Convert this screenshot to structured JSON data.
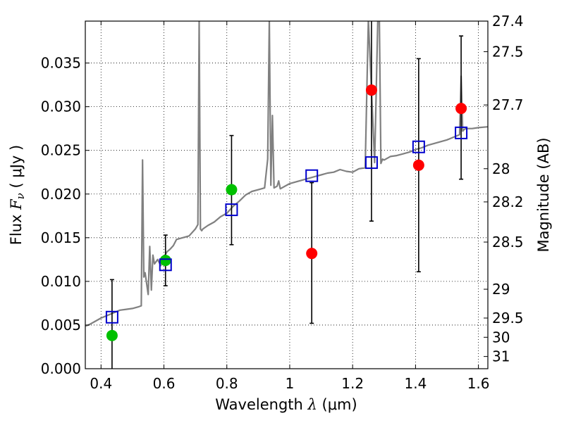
{
  "chart_data": {
    "type": "scatter",
    "xlabel": {
      "prefix": "Wavelength ",
      "symbol": "λ",
      "unit": " (μm)"
    },
    "ylabel": {
      "prefix": "Flux ",
      "symbol": "F",
      "subscript": "ν",
      "unit": " ( μJy )"
    },
    "y2label": "Magnitude (AB)",
    "xlim": [
      0.35,
      1.63
    ],
    "ylim": [
      0.0,
      0.0398
    ],
    "xticks": [
      0.4,
      0.6,
      0.8,
      1.0,
      1.2,
      1.4,
      1.6
    ],
    "xtick_labels": [
      "0.4",
      "0.6",
      "0.8",
      "1",
      "1.2",
      "1.4",
      "1.6"
    ],
    "yticks": [
      0.0,
      0.005,
      0.01,
      0.015,
      0.02,
      0.025,
      0.03,
      0.035
    ],
    "ytick_labels": [
      "0.000",
      "0.005",
      "0.010",
      "0.015",
      "0.020",
      "0.025",
      "0.030",
      "0.035"
    ],
    "y2ticks": [
      {
        "label": "27.4",
        "flux": 0.0398
      },
      {
        "label": "27.5",
        "flux": 0.0363
      },
      {
        "label": "27.7",
        "flux": 0.0302
      },
      {
        "label": "28",
        "flux": 0.0229
      },
      {
        "label": "28.2",
        "flux": 0.0191
      },
      {
        "label": "28.5",
        "flux": 0.0145
      },
      {
        "label": "29",
        "flux": 0.0091
      },
      {
        "label": "29.5",
        "flux": 0.0058
      },
      {
        "label": "30",
        "flux": 0.0036
      },
      {
        "label": "31",
        "flux": 0.0014
      }
    ],
    "grid": true,
    "spectrum": {
      "color": "#808080",
      "x": [
        0.35,
        0.36,
        0.38,
        0.4,
        0.42,
        0.44,
        0.46,
        0.48,
        0.5,
        0.52,
        0.528,
        0.532,
        0.536,
        0.54,
        0.55,
        0.555,
        0.56,
        0.565,
        0.57,
        0.58,
        0.59,
        0.6,
        0.61,
        0.62,
        0.63,
        0.64,
        0.66,
        0.68,
        0.7,
        0.708,
        0.712,
        0.716,
        0.72,
        0.724,
        0.74,
        0.76,
        0.78,
        0.8,
        0.82,
        0.84,
        0.86,
        0.88,
        0.9,
        0.92,
        0.93,
        0.935,
        0.94,
        0.945,
        0.95,
        0.96,
        0.965,
        0.97,
        0.98,
        1.0,
        1.02,
        1.04,
        1.06,
        1.08,
        1.1,
        1.12,
        1.14,
        1.16,
        1.18,
        1.2,
        1.22,
        1.24,
        1.25,
        1.27,
        1.28,
        1.285,
        1.29,
        1.295,
        1.3,
        1.32,
        1.34,
        1.36,
        1.38,
        1.4,
        1.42,
        1.44,
        1.46,
        1.48,
        1.5,
        1.52,
        1.54,
        1.545,
        1.55,
        1.555,
        1.56,
        1.58,
        1.6,
        1.63
      ],
      "y": [
        0.0049,
        0.005,
        0.0054,
        0.0058,
        0.0061,
        0.0064,
        0.0067,
        0.0068,
        0.0069,
        0.0071,
        0.0072,
        0.0239,
        0.0105,
        0.011,
        0.0085,
        0.014,
        0.009,
        0.013,
        0.012,
        0.0125,
        0.0118,
        0.0128,
        0.0134,
        0.0137,
        0.0141,
        0.0148,
        0.015,
        0.0152,
        0.016,
        0.0165,
        0.04,
        0.016,
        0.0158,
        0.016,
        0.0164,
        0.0168,
        0.0174,
        0.0178,
        0.0186,
        0.0192,
        0.0199,
        0.0203,
        0.0205,
        0.0207,
        0.024,
        0.04,
        0.021,
        0.029,
        0.0207,
        0.0209,
        0.0215,
        0.0206,
        0.0208,
        0.0212,
        0.0214,
        0.0216,
        0.0218,
        0.022,
        0.0222,
        0.0224,
        0.0225,
        0.0228,
        0.0226,
        0.0225,
        0.0229,
        0.023,
        0.04,
        0.0236,
        0.04,
        0.04,
        0.0235,
        0.024,
        0.0239,
        0.0243,
        0.0244,
        0.0246,
        0.0248,
        0.0251,
        0.0253,
        0.0256,
        0.0258,
        0.026,
        0.0262,
        0.0265,
        0.0268,
        0.0335,
        0.0272,
        0.0274,
        0.0275,
        0.0275,
        0.0276,
        0.0277
      ]
    },
    "model_points": {
      "marker": "open-square",
      "color": "#0000cc",
      "x": [
        0.435,
        0.605,
        0.815,
        1.07,
        1.26,
        1.41,
        1.545
      ],
      "y": [
        0.0059,
        0.0119,
        0.0182,
        0.0221,
        0.0236,
        0.0254,
        0.027
      ]
    },
    "detections": {
      "marker": "filled-circle",
      "color": "#00c000",
      "x": [
        0.435,
        0.605,
        0.815
      ],
      "y": [
        0.0038,
        0.0124,
        0.0205
      ],
      "err_low": [
        0.004,
        0.0029,
        0.0063
      ],
      "err_high": [
        0.0064,
        0.0029,
        0.0062
      ]
    },
    "limits": {
      "marker": "filled-circle",
      "color": "#ff0000",
      "x": [
        1.07,
        1.26,
        1.41,
        1.545
      ],
      "y": [
        0.0132,
        0.0319,
        0.0233,
        0.0298
      ],
      "err_low": [
        0.008,
        0.015,
        0.0122,
        0.0081
      ],
      "err_high": [
        0.0081,
        0.01,
        0.0122,
        0.0083
      ]
    }
  }
}
